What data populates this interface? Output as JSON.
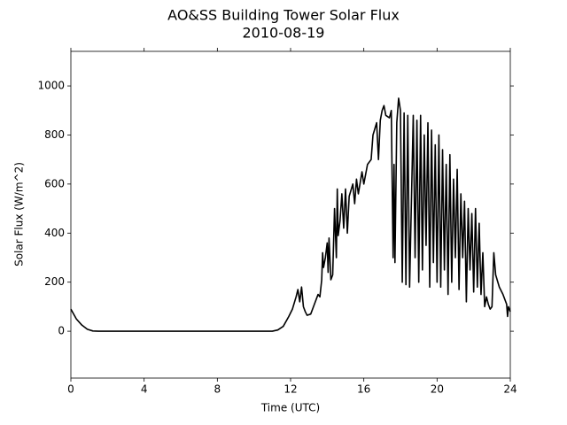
{
  "chart_data": {
    "type": "line",
    "title": "AO&SS Building Tower Solar Flux",
    "subtitle": "2010-08-19",
    "x_label": "Time (UTC)",
    "y_label": "Solar Flux (W/m^2)",
    "xlim": [
      0,
      24
    ],
    "xticks": [
      0,
      4,
      8,
      12,
      16,
      20,
      24
    ],
    "ylim": [
      -191,
      1141
    ],
    "yticks": [
      0,
      200,
      400,
      600,
      800,
      1000
    ],
    "series": [
      {
        "color": "#000000",
        "x": [
          0,
          0.3,
          0.6,
          0.9,
          1.2,
          1.5,
          11,
          11.3,
          11.6,
          11.9,
          12.1,
          12.3,
          12.4,
          12.5,
          12.6,
          12.7,
          12.8,
          12.9,
          13.1,
          13.3,
          13.5,
          13.6,
          13.7,
          13.75,
          13.8,
          13.9,
          14.0,
          14.05,
          14.1,
          14.2,
          14.3,
          14.4,
          14.5,
          14.55,
          14.6,
          14.7,
          14.8,
          14.9,
          15.0,
          15.1,
          15.2,
          15.4,
          15.5,
          15.6,
          15.7,
          15.9,
          16.0,
          16.2,
          16.4,
          16.5,
          16.7,
          16.8,
          16.9,
          17.0,
          17.1,
          17.2,
          17.4,
          17.5,
          17.6,
          17.65,
          17.7,
          17.8,
          17.9,
          18.0,
          18.1,
          18.2,
          18.3,
          18.4,
          18.5,
          18.7,
          18.8,
          18.9,
          19.0,
          19.1,
          19.2,
          19.3,
          19.4,
          19.5,
          19.6,
          19.7,
          19.8,
          19.9,
          20.0,
          20.1,
          20.2,
          20.3,
          20.4,
          20.5,
          20.6,
          20.7,
          20.8,
          20.9,
          21.0,
          21.1,
          21.2,
          21.3,
          21.4,
          21.5,
          21.6,
          21.7,
          21.8,
          21.9,
          22.0,
          22.1,
          22.2,
          22.3,
          22.4,
          22.5,
          22.6,
          22.7,
          22.8,
          22.9,
          23.0,
          23.1,
          23.2,
          23.4,
          23.6,
          23.8,
          23.85,
          23.9,
          24.0
        ],
        "values": [
          90,
          50,
          25,
          8,
          1,
          0,
          0,
          5,
          20,
          60,
          90,
          140,
          170,
          120,
          180,
          100,
          80,
          65,
          70,
          110,
          150,
          140,
          210,
          320,
          260,
          300,
          360,
          240,
          380,
          210,
          230,
          500,
          300,
          580,
          390,
          450,
          560,
          420,
          580,
          400,
          550,
          600,
          520,
          620,
          560,
          650,
          600,
          680,
          700,
          800,
          850,
          700,
          860,
          900,
          920,
          880,
          870,
          900,
          300,
          680,
          280,
          850,
          950,
          900,
          200,
          890,
          190,
          880,
          180,
          880,
          300,
          860,
          200,
          880,
          250,
          800,
          350,
          850,
          180,
          820,
          280,
          760,
          200,
          800,
          180,
          740,
          250,
          680,
          150,
          720,
          200,
          620,
          300,
          660,
          170,
          560,
          300,
          530,
          120,
          500,
          250,
          480,
          160,
          500,
          180,
          440,
          150,
          320,
          100,
          140,
          110,
          90,
          100,
          320,
          230,
          180,
          150,
          110,
          60,
          100,
          80
        ]
      }
    ]
  }
}
